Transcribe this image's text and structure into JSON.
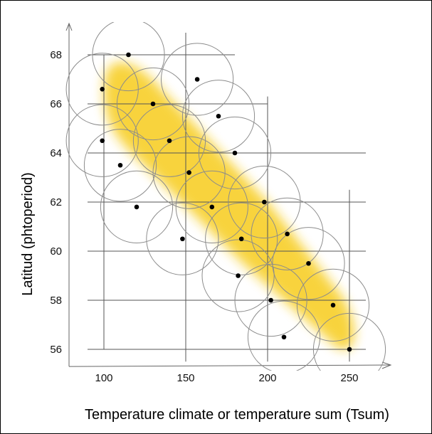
{
  "chart_data": {
    "type": "scatter",
    "title": "",
    "xlabel": "Temperature climate or temperature sum (Tsum)",
    "ylabel": "Latitud (phtoperiod)",
    "xlim": [
      82,
      268
    ],
    "ylim": [
      55.3,
      69.3
    ],
    "x_ticks": [
      100,
      150,
      200,
      250
    ],
    "y_ticks": [
      56,
      58,
      60,
      62,
      64,
      66,
      68
    ],
    "grid": true,
    "marker_color": "#000000",
    "circle_color": "#8c8c8c",
    "band_color": "#f7cc1e",
    "circle_radius_data": 22,
    "points": [
      {
        "x": 115,
        "y": 68.0
      },
      {
        "x": 157,
        "y": 67.0
      },
      {
        "x": 99,
        "y": 66.6
      },
      {
        "x": 130,
        "y": 66.0
      },
      {
        "x": 170,
        "y": 65.5
      },
      {
        "x": 99,
        "y": 64.5
      },
      {
        "x": 140,
        "y": 64.5
      },
      {
        "x": 180,
        "y": 64.0
      },
      {
        "x": 110,
        "y": 63.5
      },
      {
        "x": 152,
        "y": 63.2
      },
      {
        "x": 198,
        "y": 62.0
      },
      {
        "x": 120,
        "y": 61.8
      },
      {
        "x": 166,
        "y": 61.8
      },
      {
        "x": 212,
        "y": 60.7
      },
      {
        "x": 148,
        "y": 60.5
      },
      {
        "x": 184,
        "y": 60.5
      },
      {
        "x": 225,
        "y": 59.5
      },
      {
        "x": 182,
        "y": 59.0
      },
      {
        "x": 202,
        "y": 58.0
      },
      {
        "x": 240,
        "y": 57.8
      },
      {
        "x": 210,
        "y": 56.5
      },
      {
        "x": 250,
        "y": 56.0
      }
    ]
  }
}
